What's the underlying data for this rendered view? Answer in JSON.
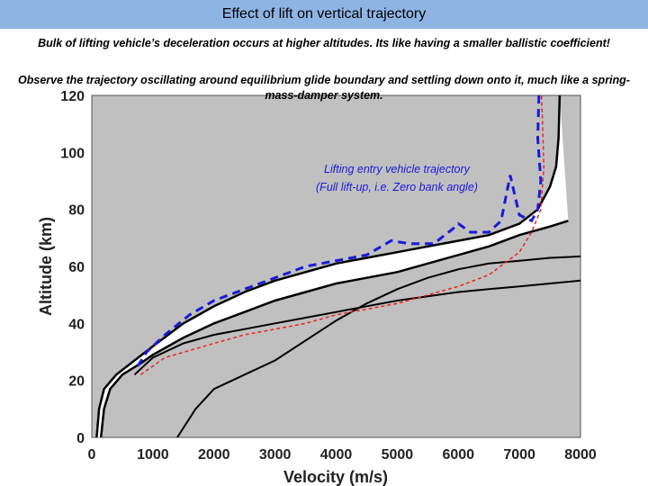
{
  "header": {
    "title": "Effect of lift on vertical trajectory"
  },
  "notes": {
    "line1": "Bulk of lifting vehicle’s deceleration occurs at higher altitudes. Its like having a smaller ballistic coefficient!",
    "line2": "Observe the trajectory oscillating around equilibrium glide boundary and settling down onto it, much like a spring-mass-damper system."
  },
  "chart_data": {
    "type": "line",
    "xlabel": "Velocity (m/s)",
    "ylabel": "Altitude (km)",
    "xlim": [
      0,
      8000
    ],
    "ylim": [
      0,
      120
    ],
    "x_ticks": [
      0,
      1000,
      2000,
      3000,
      4000,
      5000,
      6000,
      7000,
      8000
    ],
    "y_ticks": [
      0,
      20,
      40,
      60,
      80,
      100,
      120
    ],
    "grid": false,
    "colors": {
      "background": "#c0c0c0",
      "corridor": "#ffffff",
      "boundary": "#000000",
      "lifting": "#1a1ad9",
      "ballistic": "#ee2222"
    },
    "annotation": [
      "Lifting entry vehicle trajectory",
      "(Full lift-up, i.e. Zero bank angle)"
    ],
    "corridor_upper": [
      [
        80,
        0
      ],
      [
        120,
        10
      ],
      [
        200,
        17
      ],
      [
        400,
        22
      ],
      [
        700,
        27
      ],
      [
        1000,
        32
      ],
      [
        1500,
        40
      ],
      [
        2000,
        46
      ],
      [
        2500,
        51
      ],
      [
        3000,
        55
      ],
      [
        3500,
        58
      ],
      [
        4000,
        61
      ],
      [
        4500,
        63
      ],
      [
        5000,
        65
      ],
      [
        5500,
        67
      ],
      [
        6000,
        69
      ],
      [
        6500,
        71
      ],
      [
        7000,
        75
      ],
      [
        7300,
        80
      ],
      [
        7500,
        88
      ],
      [
        7600,
        95
      ],
      [
        7640,
        105
      ],
      [
        7660,
        120
      ]
    ],
    "corridor_lower": [
      [
        150,
        0
      ],
      [
        200,
        10
      ],
      [
        300,
        17
      ],
      [
        500,
        22
      ],
      [
        800,
        26
      ],
      [
        1000,
        29
      ],
      [
        1500,
        35
      ],
      [
        2000,
        40
      ],
      [
        2500,
        44
      ],
      [
        3000,
        48
      ],
      [
        3500,
        51
      ],
      [
        4000,
        54
      ],
      [
        4500,
        56
      ],
      [
        5000,
        58
      ],
      [
        5500,
        61
      ],
      [
        6000,
        64
      ],
      [
        6500,
        67
      ],
      [
        7000,
        71
      ],
      [
        7500,
        74
      ],
      [
        7800,
        76
      ]
    ],
    "boundary_1": [
      [
        1400,
        0
      ],
      [
        1700,
        10
      ],
      [
        2000,
        17
      ],
      [
        2500,
        22
      ],
      [
        3000,
        27
      ],
      [
        3500,
        34
      ],
      [
        4000,
        41
      ],
      [
        4500,
        47
      ],
      [
        5000,
        52
      ],
      [
        5500,
        56
      ],
      [
        6000,
        59
      ],
      [
        6500,
        61
      ],
      [
        7000,
        62
      ],
      [
        7500,
        63
      ],
      [
        8000,
        63.5
      ]
    ],
    "boundary_2": [
      [
        700,
        22
      ],
      [
        1000,
        28
      ],
      [
        1500,
        33
      ],
      [
        2000,
        36
      ],
      [
        2500,
        38
      ],
      [
        3000,
        40
      ],
      [
        3500,
        42
      ],
      [
        4000,
        44
      ],
      [
        4500,
        46
      ],
      [
        5000,
        48
      ],
      [
        5500,
        49.5
      ],
      [
        6000,
        51
      ],
      [
        6500,
        52
      ],
      [
        7000,
        53
      ],
      [
        7500,
        54
      ],
      [
        8000,
        55
      ]
    ],
    "lifting_trajectory": [
      [
        750,
        25
      ],
      [
        900,
        30
      ],
      [
        1200,
        36
      ],
      [
        1600,
        43
      ],
      [
        2000,
        48
      ],
      [
        2500,
        52
      ],
      [
        3000,
        56
      ],
      [
        3500,
        60
      ],
      [
        4000,
        62
      ],
      [
        4500,
        64
      ],
      [
        4900,
        69
      ],
      [
        5200,
        68
      ],
      [
        5600,
        68
      ],
      [
        5900,
        73
      ],
      [
        6000,
        75
      ],
      [
        6200,
        72
      ],
      [
        6500,
        72
      ],
      [
        6700,
        76
      ],
      [
        6850,
        92
      ],
      [
        7000,
        78
      ],
      [
        7200,
        76
      ],
      [
        7300,
        80
      ],
      [
        7350,
        90
      ],
      [
        7300,
        105
      ],
      [
        7320,
        120
      ]
    ],
    "ballistic_trajectory": [
      [
        800,
        22
      ],
      [
        1200,
        28
      ],
      [
        2000,
        33
      ],
      [
        2500,
        36
      ],
      [
        3000,
        38
      ],
      [
        3500,
        40
      ],
      [
        4000,
        43
      ],
      [
        4500,
        45
      ],
      [
        5000,
        47
      ],
      [
        5500,
        50
      ],
      [
        6000,
        53
      ],
      [
        6500,
        57
      ],
      [
        7000,
        65
      ],
      [
        7200,
        72
      ],
      [
        7350,
        80
      ],
      [
        7400,
        95
      ],
      [
        7380,
        110
      ],
      [
        7360,
        120
      ]
    ]
  }
}
